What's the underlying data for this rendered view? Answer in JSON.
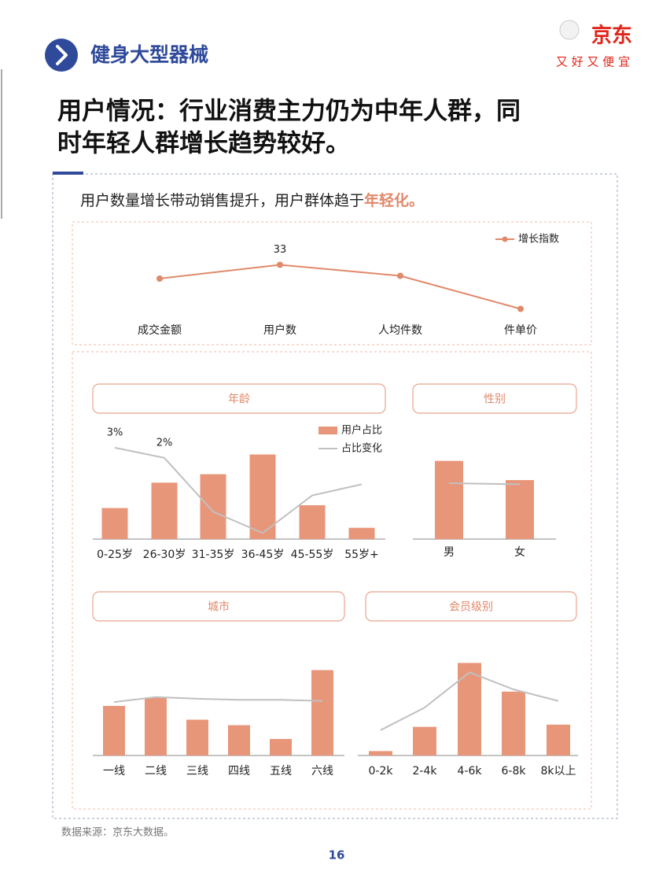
{
  "header": {
    "section": "健身大型器械",
    "brand": "京东",
    "slogan": "又 好 又 便 宜"
  },
  "title": [
    "用户情况：行业消费主力仍为中年人群，同",
    "时年轻人群增长趋势较好。"
  ],
  "subtitle": {
    "text": "用户数量增长带动销售提升，用户群体趋于",
    "highlight": "年轻化。"
  },
  "chart_data": [
    {
      "type": "line",
      "categories": [
        "成交金额",
        "用户数",
        "人均件数",
        "件单价"
      ],
      "series": [
        {
          "name": "增长指数",
          "color": "#e0896b",
          "values": [
            28,
            33,
            29,
            17
          ],
          "value_labels": [
            null,
            "33",
            null,
            null
          ]
        }
      ],
      "ylim": [
        10,
        40
      ],
      "legend": "top-right"
    },
    {
      "type": "bar",
      "title": "年龄",
      "categories": [
        "0-25岁",
        "26-30岁",
        "31-35岁",
        "36-45岁",
        "45-55岁",
        "55岁+"
      ],
      "series": [
        {
          "name": "用户占比",
          "color": "#e8967a",
          "values": [
            11,
            20,
            23,
            30,
            12,
            4
          ]
        },
        {
          "name": "占比变化",
          "color": "#c0c0c0",
          "axis": "y2",
          "values": [
            3,
            2,
            -3.3,
            -5.4,
            -1.7,
            -0.6
          ],
          "value_labels": [
            "3%",
            "2%",
            null,
            null,
            null,
            null
          ]
        }
      ],
      "ylim": [
        0,
        36
      ],
      "y2lim": [
        -6,
        4
      ],
      "legend": "top-right"
    },
    {
      "type": "bar",
      "title": "性别",
      "categories": [
        "男",
        "女"
      ],
      "series": [
        {
          "color": "#e8967a",
          "values": [
            57,
            43
          ]
        },
        {
          "color": "#c0c0c0",
          "axis": "y2",
          "values": [
            -0.5,
            -0.6
          ]
        }
      ],
      "ylim": [
        0,
        74
      ],
      "y2lim": [
        -6,
        4
      ]
    },
    {
      "type": "bar",
      "title": "城市",
      "categories": [
        "一线",
        "二线",
        "三线",
        "四线",
        "五线",
        "六线"
      ],
      "series": [
        {
          "color": "#e8967a",
          "values": [
            18,
            21,
            13,
            11,
            6,
            31
          ]
        },
        {
          "color": "#c0c0c0",
          "axis": "y2",
          "values": [
            -0.3,
            0.6,
            0.3,
            0.1,
            0.1,
            -0.1
          ]
        }
      ],
      "ylim": [
        0,
        40
      ],
      "y2lim": [
        -10,
        10
      ]
    },
    {
      "type": "bar",
      "title": "会员级别",
      "categories": [
        "0-2k",
        "2-4k",
        "4-6k",
        "6-8k",
        "8k以上"
      ],
      "series": [
        {
          "color": "#e8967a",
          "values": [
            2,
            13,
            42,
            29,
            14
          ]
        },
        {
          "color": "#c0c0c0",
          "axis": "y2",
          "values": [
            -5.4,
            -1.3,
            5.1,
            2,
            -0.1
          ]
        }
      ],
      "ylim": [
        0,
        50
      ],
      "y2lim": [
        -10,
        10
      ]
    }
  ],
  "source": "数据来源：京东大数据。",
  "page_number": 16
}
